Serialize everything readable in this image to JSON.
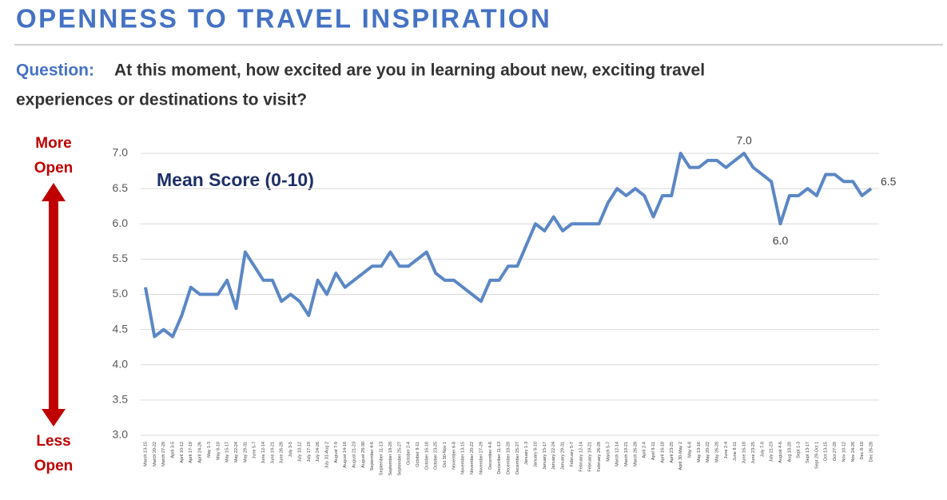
{
  "chart_data": {
    "type": "line",
    "title": "OPENNESS TO TRAVEL INSPIRATION",
    "question_label": "Question:",
    "question": [
      "At this moment, how excited are you in learning about new, exciting travel",
      "experiences or destinations to visit?"
    ],
    "subtitle": "Mean Score (0-10)",
    "top_label": [
      "More",
      "Open"
    ],
    "bottom_label": [
      "Less",
      "Open"
    ],
    "categories": [
      "March 13-15",
      "March 20-22",
      "March 27-29",
      "April 3-5",
      "April 10-12",
      "April 17-19",
      "April 24-26",
      "May 1-3",
      "May 8-10",
      "May 15-17",
      "May 22-24",
      "May 29-31",
      "June 5-7",
      "June 12-14",
      "June 19-21",
      "June 26-28",
      "July 3-5",
      "July 10-12",
      "July 17-19",
      "July 24-26",
      "July 31-Aug 2",
      "August 7-9",
      "August 14-16",
      "August 21-23",
      "August 28-30",
      "September 4-6",
      "September 11-13",
      "September 18-20",
      "September 25-27",
      "October 2-4",
      "October 9-11",
      "October 16-18",
      "October 23-25",
      "Oct 30-Nov 1",
      "November 6-8",
      "November 13-15",
      "November 20-22",
      "November 27-29",
      "December 4-6",
      "December 11-13",
      "December 18-20",
      "December 25-27",
      "January 1-3",
      "January 8-10",
      "January 15-17",
      "January 22-24",
      "January 29-31",
      "February 5-7",
      "February 12-14",
      "February 19-21",
      "February 26-28",
      "March 5-7",
      "March 12-14",
      "March 19-21",
      "March 26-28",
      "April 2-4",
      "April 9-11",
      "April 16-18",
      "April 23-25",
      "April 30-May 2",
      "May 6-8",
      "May 13-16",
      "May 20-22",
      "May 26-28",
      "June 2-4",
      "June 9-11",
      "June 16-18",
      "June 23-25",
      "July 7-9",
      "July 21-23",
      "August 4-6",
      "Aug 18-20",
      "Sept 1-3",
      "Sept 13-17",
      "Sept 29-Oct 1",
      "Oct 13-15",
      "Oct 27-29",
      "Nov 10-12",
      "Nov 24-26",
      "Dec 8-10",
      "Dec 26-28"
    ],
    "series": [
      {
        "name": "Mean Score",
        "color": "#5b87c5",
        "values": [
          5.1,
          4.4,
          4.5,
          4.4,
          4.7,
          5.1,
          5.0,
          5.0,
          5.0,
          5.2,
          4.8,
          5.6,
          5.4,
          5.2,
          5.2,
          4.9,
          5.0,
          4.9,
          4.7,
          5.2,
          5.0,
          5.3,
          5.1,
          5.2,
          5.3,
          5.4,
          5.4,
          5.6,
          5.4,
          5.4,
          5.5,
          5.6,
          5.3,
          5.2,
          5.2,
          5.1,
          5.0,
          4.9,
          5.2,
          5.2,
          5.4,
          5.4,
          5.7,
          6.0,
          5.9,
          6.1,
          5.9,
          6.0,
          6.0,
          6.0,
          6.0,
          6.3,
          6.5,
          6.4,
          6.5,
          6.4,
          6.1,
          6.4,
          6.4,
          7.0,
          6.8,
          6.8,
          6.9,
          6.9,
          6.8,
          6.9,
          7.0,
          6.8,
          6.7,
          6.6,
          6.0,
          6.4,
          6.4,
          6.5,
          6.4,
          6.7,
          6.7,
          6.6,
          6.6,
          6.4,
          6.5
        ],
        "value_labels": [
          null,
          null,
          null,
          null,
          null,
          null,
          null,
          null,
          null,
          null,
          null,
          null,
          null,
          null,
          null,
          null,
          null,
          null,
          null,
          null,
          null,
          null,
          null,
          null,
          null,
          null,
          null,
          null,
          null,
          null,
          null,
          null,
          null,
          null,
          null,
          null,
          null,
          null,
          null,
          null,
          null,
          null,
          null,
          null,
          null,
          null,
          null,
          null,
          null,
          null,
          null,
          null,
          null,
          null,
          null,
          null,
          null,
          null,
          null,
          null,
          null,
          null,
          null,
          null,
          null,
          null,
          "7.0",
          null,
          null,
          null,
          "6.0",
          null,
          null,
          null,
          null,
          null,
          null,
          null,
          null,
          null,
          "6.5"
        ]
      }
    ],
    "ylim": [
      3,
      7
    ],
    "yticks": [
      {
        "value": 3,
        "label": "3.0"
      },
      {
        "value": 3.5,
        "label": "3.5"
      },
      {
        "value": 4,
        "label": "4.0"
      },
      {
        "value": 4.5,
        "label": "4.5"
      },
      {
        "value": 5,
        "label": "5.0"
      },
      {
        "value": 5.5,
        "label": "5.5"
      },
      {
        "value": 6,
        "label": "6.0"
      },
      {
        "value": 6.5,
        "label": "6.5"
      },
      {
        "value": 7,
        "label": "7.0"
      }
    ],
    "grid": true
  }
}
